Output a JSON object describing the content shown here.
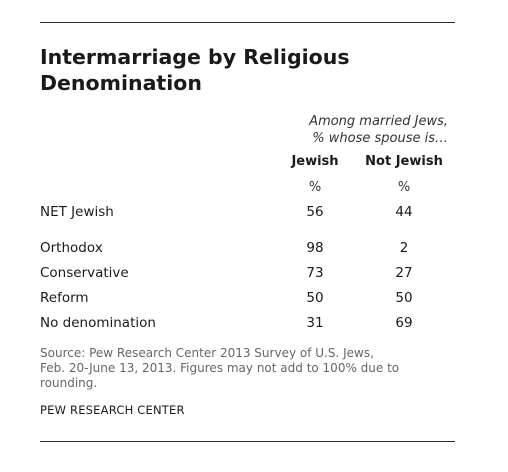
{
  "title": "Intermarriage by Religious Denomination",
  "subtitle_line1": "Among married Jews,",
  "subtitle_line2": "% whose spouse is…",
  "columns": [
    {
      "label": "Jewish",
      "unit": "%"
    },
    {
      "label": "Not Jewish",
      "unit": "%"
    }
  ],
  "rows": [
    {
      "label": "NET Jewish",
      "jewish": "56",
      "not_jewish": "44"
    },
    {
      "label": "Orthodox",
      "jewish": "98",
      "not_jewish": "2"
    },
    {
      "label": "Conservative",
      "jewish": "73",
      "not_jewish": "27"
    },
    {
      "label": "Reform",
      "jewish": "50",
      "not_jewish": "50"
    },
    {
      "label": "No denomination",
      "jewish": "31",
      "not_jewish": "69"
    }
  ],
  "source_line1": "Source: Pew Research Center 2013 Survey of U.S. Jews,",
  "source_line2": "Feb. 20-June 13, 2013. Figures may not add to 100% due to",
  "source_line3": "rounding.",
  "credit": "PEW RESEARCH CENTER",
  "colors": {
    "text": "#1a1a1a",
    "source_text": "#666666",
    "rule": "#2b2b2b"
  }
}
